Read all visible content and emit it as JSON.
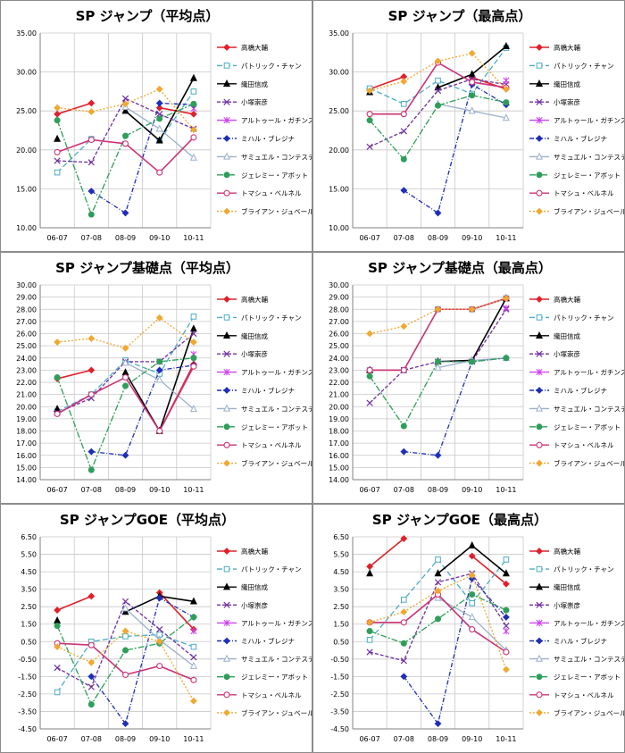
{
  "player_colors": [
    "#e0202a",
    "#4bacc6",
    "#000000",
    "#7030a0",
    "#cc44ee",
    "#1f2fb8",
    "#9bb0cc",
    "#2e9e5a",
    "#cc3377",
    "#f0a830"
  ],
  "chart_data": [
    {
      "type": "line",
      "title": "SP ジャンプ（平均点）",
      "categories": [
        "06-07",
        "07-08",
        "08-09",
        "09-10",
        "10-11"
      ],
      "ylim": [
        10,
        35
      ],
      "yticks": [
        "10.00",
        "15.00",
        "20.00",
        "25.00",
        "30.00",
        "35.00"
      ],
      "series": [
        {
          "name": "高橋大輔",
          "values": [
            24.6,
            26.0,
            null,
            25.4,
            24.6
          ]
        },
        {
          "name": "パトリック・チャン",
          "values": [
            17.1,
            21.4,
            null,
            21.2,
            27.5
          ]
        },
        {
          "name": "織田信成",
          "values": [
            21.4,
            null,
            25.0,
            21.2,
            29.2
          ]
        },
        {
          "name": "小塚崇彦",
          "values": [
            18.6,
            18.4,
            26.6,
            24.6,
            22.7
          ]
        },
        {
          "name": "アルトゥール・ガチンスキー",
          "values": [
            null,
            null,
            null,
            null,
            25.3
          ]
        },
        {
          "name": "ミハル・ブレジナ",
          "values": [
            null,
            14.7,
            11.9,
            26.0,
            25.8
          ]
        },
        {
          "name": "サミュエル・コンテスティ",
          "values": [
            null,
            null,
            25.5,
            22.7,
            19.0
          ]
        },
        {
          "name": "ジェレミー・アボット",
          "values": [
            23.8,
            11.7,
            21.8,
            24.0,
            25.9
          ]
        },
        {
          "name": "トマシュ・ベルネル",
          "values": [
            19.7,
            21.3,
            20.8,
            17.1,
            21.6
          ]
        },
        {
          "name": "ブライアン・ジュベール",
          "values": [
            25.4,
            24.9,
            25.9,
            27.8,
            22.6
          ]
        }
      ]
    },
    {
      "type": "line",
      "title": "SP ジャンプ（最高点）",
      "categories": [
        "06-07",
        "07-08",
        "08-09",
        "09-10",
        "10-11"
      ],
      "ylim": [
        10,
        35
      ],
      "yticks": [
        "10.00",
        "15.00",
        "20.00",
        "25.00",
        "30.00",
        "35.00"
      ],
      "series": [
        {
          "name": "高橋大輔",
          "values": [
            27.8,
            29.4,
            null,
            29.3,
            27.8
          ]
        },
        {
          "name": "パトリック・チャン",
          "values": [
            27.9,
            25.9,
            28.9,
            27.2,
            33.1
          ]
        },
        {
          "name": "織田信成",
          "values": [
            27.4,
            null,
            28.0,
            29.7,
            33.3
          ]
        },
        {
          "name": "小塚崇彦",
          "values": [
            20.4,
            22.4,
            27.6,
            29.1,
            28.4
          ]
        },
        {
          "name": "アルトゥール・ガチンスキー",
          "values": [
            null,
            null,
            null,
            null,
            28.9
          ]
        },
        {
          "name": "ミハル・ブレジナ",
          "values": [
            null,
            14.8,
            11.9,
            28.4,
            25.8
          ]
        },
        {
          "name": "サミュエル・コンテスティ",
          "values": [
            null,
            null,
            25.9,
            25.0,
            24.1
          ]
        },
        {
          "name": "ジェレミー・アボット",
          "values": [
            23.8,
            18.8,
            25.7,
            27.0,
            26.1
          ]
        },
        {
          "name": "トマシュ・ベルネル",
          "values": [
            24.6,
            24.6,
            31.2,
            28.7,
            28.0
          ]
        },
        {
          "name": "ブライアン・ジュベール",
          "values": [
            27.6,
            28.8,
            31.4,
            32.4,
            27.8
          ]
        }
      ]
    },
    {
      "type": "line",
      "title": "SP ジャンプ基礎点（平均点）",
      "categories": [
        "06-07",
        "07-08",
        "08-09",
        "09-10",
        "10-11"
      ],
      "ylim": [
        14,
        30
      ],
      "yticks": [
        "14.00",
        "15.00",
        "16.00",
        "17.00",
        "18.00",
        "19.00",
        "20.00",
        "21.00",
        "22.00",
        "23.00",
        "24.00",
        "25.00",
        "26.00",
        "27.00",
        "28.00",
        "29.00",
        "30.00"
      ],
      "series": [
        {
          "name": "高橋大輔",
          "values": [
            22.3,
            23.0,
            null,
            18.0,
            23.5
          ]
        },
        {
          "name": "パトリック・チャン",
          "values": [
            19.6,
            21.0,
            23.8,
            22.7,
            27.4
          ]
        },
        {
          "name": "織田信成",
          "values": [
            19.8,
            null,
            22.8,
            18.0,
            26.4
          ]
        },
        {
          "name": "小塚崇彦",
          "values": [
            19.5,
            20.7,
            23.7,
            23.7,
            26.0
          ]
        },
        {
          "name": "アルトゥール・ガチンスキー",
          "values": [
            null,
            null,
            null,
            null,
            24.3
          ]
        },
        {
          "name": "ミハル・ブレジナ",
          "values": [
            null,
            16.3,
            16.0,
            23.0,
            23.4
          ]
        },
        {
          "name": "サミュエル・コンテスティ",
          "values": [
            null,
            null,
            23.6,
            22.2,
            19.8
          ]
        },
        {
          "name": "ジェレミー・アボット",
          "values": [
            22.4,
            14.8,
            21.7,
            23.7,
            24.0
          ]
        },
        {
          "name": "トマシュ・ベルネル",
          "values": [
            19.4,
            21.0,
            22.4,
            18.0,
            23.3
          ]
        },
        {
          "name": "ブライアン・ジュベール",
          "values": [
            25.3,
            25.6,
            24.8,
            27.3,
            25.3
          ]
        }
      ]
    },
    {
      "type": "line",
      "title": "SP ジャンプ基礎点（最高点）",
      "categories": [
        "06-07",
        "07-08",
        "08-09",
        "09-10",
        "10-11"
      ],
      "ylim": [
        14,
        30
      ],
      "yticks": [
        "14.00",
        "15.00",
        "16.00",
        "17.00",
        "18.00",
        "19.00",
        "20.00",
        "21.00",
        "22.00",
        "23.00",
        "24.00",
        "25.00",
        "26.00",
        "27.00",
        "28.00",
        "29.00",
        "30.00"
      ],
      "series": [
        {
          "name": "高橋大輔",
          "values": [
            23.0,
            23.0,
            null,
            28.0,
            28.9
          ]
        },
        {
          "name": "パトリック・チャン",
          "values": [
            23.0,
            23.0,
            28.0,
            28.0,
            28.9
          ]
        },
        {
          "name": "織田信成",
          "values": [
            23.0,
            null,
            23.7,
            23.8,
            28.9
          ]
        },
        {
          "name": "小塚崇彦",
          "values": [
            20.3,
            23.0,
            23.7,
            23.7,
            28.0
          ]
        },
        {
          "name": "アルトゥール・ガチンスキー",
          "values": [
            null,
            null,
            null,
            null,
            28.1
          ]
        },
        {
          "name": "ミハル・ブレジナ",
          "values": [
            null,
            16.3,
            16.0,
            23.7,
            24.0
          ]
        },
        {
          "name": "サミュエル・コンテスティ",
          "values": [
            null,
            null,
            23.2,
            23.8,
            24.0
          ]
        },
        {
          "name": "ジェレミー・アボット",
          "values": [
            22.5,
            18.4,
            23.7,
            23.7,
            24.0
          ]
        },
        {
          "name": "トマシュ・ベルネル",
          "values": [
            23.0,
            23.0,
            28.0,
            28.0,
            28.9
          ]
        },
        {
          "name": "ブライアン・ジュベール",
          "values": [
            26.0,
            26.6,
            28.0,
            28.0,
            28.9
          ]
        }
      ]
    },
    {
      "type": "line",
      "title": "SP ジャンプGOE（平均点）",
      "categories": [
        "06-07",
        "07-08",
        "08-09",
        "09-10",
        "10-11"
      ],
      "ylim": [
        -4.5,
        6.5
      ],
      "yticks": [
        "-4.50",
        "-3.50",
        "-2.50",
        "-1.50",
        "-0.50",
        "0.50",
        "1.50",
        "2.50",
        "3.50",
        "4.50",
        "5.50",
        "6.50"
      ],
      "series": [
        {
          "name": "高橋大輔",
          "values": [
            2.3,
            3.1,
            null,
            3.3,
            1.2
          ]
        },
        {
          "name": "パトリック・チャン",
          "values": [
            -2.4,
            0.5,
            0.8,
            0.9,
            0.2
          ]
        },
        {
          "name": "織田信成",
          "values": [
            1.7,
            null,
            2.2,
            3.1,
            2.8
          ]
        },
        {
          "name": "小塚崇彦",
          "values": [
            -1.0,
            -2.1,
            2.8,
            1.2,
            -0.4
          ]
        },
        {
          "name": "アルトゥール・ガチンスキー",
          "values": [
            null,
            null,
            null,
            null,
            1.1
          ]
        },
        {
          "name": "ミハル・ブレジナ",
          "values": [
            null,
            -1.5,
            -4.2,
            3.0,
            1.9
          ]
        },
        {
          "name": "サミュエル・コンテスティ",
          "values": [
            null,
            null,
            2.4,
            0.6,
            -0.9
          ]
        },
        {
          "name": "ジェレミー・アボット",
          "values": [
            1.4,
            -3.1,
            0.0,
            0.4,
            1.9
          ]
        },
        {
          "name": "トマシュ・ベルネル",
          "values": [
            0.4,
            0.3,
            -1.4,
            -0.9,
            -1.7
          ]
        },
        {
          "name": "ブライアン・ジュベール",
          "values": [
            0.2,
            -0.7,
            1.1,
            0.5,
            -2.9
          ]
        }
      ]
    },
    {
      "type": "line",
      "title": "SP ジャンプGOE（最高点）",
      "categories": [
        "06-07",
        "07-08",
        "08-09",
        "09-10",
        "10-11"
      ],
      "ylim": [
        -4.5,
        6.5
      ],
      "yticks": [
        "-4.50",
        "-3.50",
        "-2.50",
        "-1.50",
        "-0.50",
        "0.50",
        "1.50",
        "2.50",
        "3.50",
        "4.50",
        "5.50",
        "6.50"
      ],
      "series": [
        {
          "name": "高橋大輔",
          "values": [
            4.8,
            6.4,
            null,
            5.4,
            3.8
          ]
        },
        {
          "name": "パトリック・チャン",
          "values": [
            0.6,
            2.9,
            5.2,
            2.7,
            5.2
          ]
        },
        {
          "name": "織田信成",
          "values": [
            4.4,
            null,
            4.4,
            6.0,
            4.4
          ]
        },
        {
          "name": "小塚崇彦",
          "values": [
            -0.1,
            -0.6,
            3.9,
            4.4,
            1.4
          ]
        },
        {
          "name": "アルトゥール・ガチンスキー",
          "values": [
            null,
            null,
            null,
            null,
            1.1
          ]
        },
        {
          "name": "ミハル・ブレジナ",
          "values": [
            null,
            -1.5,
            -4.2,
            4.1,
            1.9
          ]
        },
        {
          "name": "サミュエル・コンテスティ",
          "values": [
            null,
            null,
            3.0,
            1.9,
            0.0
          ]
        },
        {
          "name": "ジェレミー・アボット",
          "values": [
            1.1,
            0.4,
            1.8,
            3.2,
            2.3
          ]
        },
        {
          "name": "トマシュ・ベルネル",
          "values": [
            1.6,
            1.6,
            3.2,
            1.2,
            -0.1
          ]
        },
        {
          "name": "ブライアン・ジュベール",
          "values": [
            1.6,
            2.2,
            3.4,
            4.3,
            -1.1
          ]
        }
      ]
    }
  ]
}
